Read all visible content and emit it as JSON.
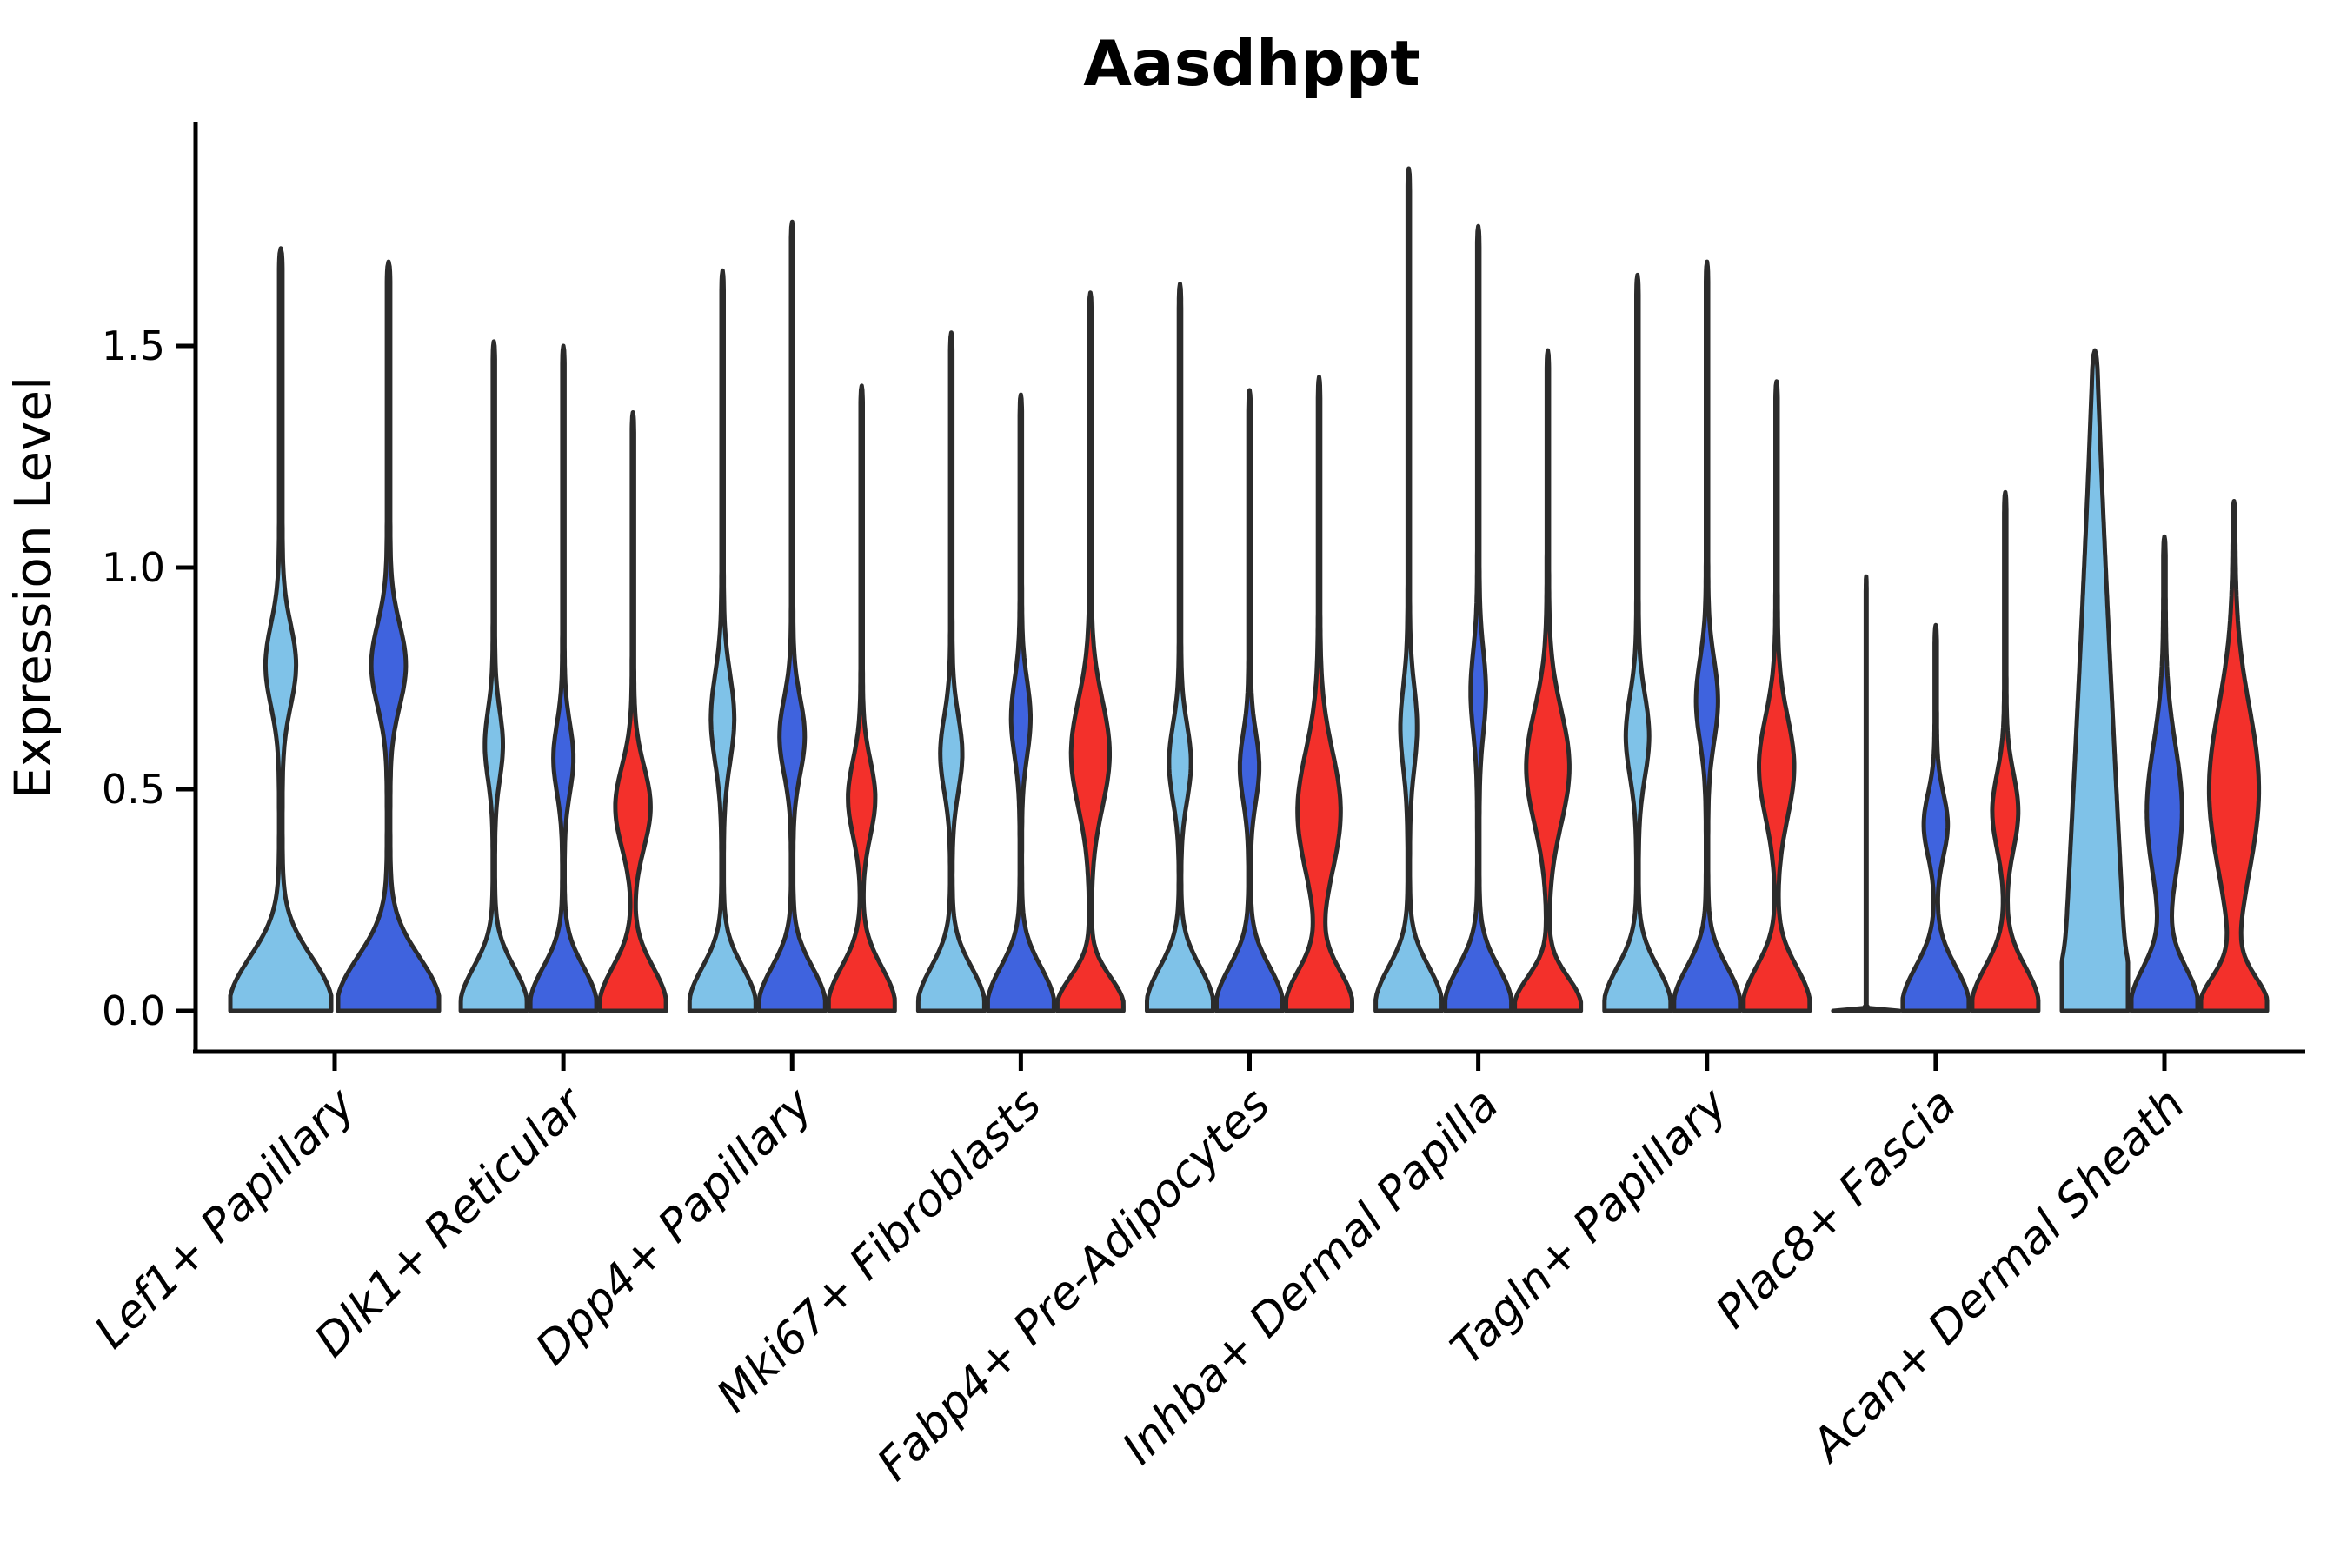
{
  "figure": {
    "title": "Aasdhppt",
    "ylabel": "Expression Level",
    "xlabel": ""
  },
  "colors": {
    "light_blue": "#7FC2E8",
    "blue": "#3F63DE",
    "red": "#F3302B",
    "violin_outline": "#2B2B2B",
    "axis": "#000000",
    "text": "#000000",
    "background": "#FFFFFF"
  },
  "chart_data": {
    "type": "violin",
    "title": "Aasdhppt",
    "xlabel": "",
    "ylabel": "Expression Level",
    "ylim": [
      0,
      1.95
    ],
    "yticks": [
      0.0,
      0.5,
      1.0,
      1.5
    ],
    "ytick_labels": [
      "0.0",
      "0.5",
      "1.0",
      "1.5"
    ],
    "grid": false,
    "legend": "none",
    "x_tick_rotation_deg": 45,
    "series_colors": [
      "light_blue",
      "blue",
      "red"
    ],
    "groups": [
      {
        "label": "Lef1+ Papillary",
        "violins": [
          {
            "color": "light_blue",
            "peak": 1.72,
            "bulge_center": 0.78,
            "bulge_width": 0.27,
            "bulge_spread": 0.13,
            "base_spread": 0.16
          },
          {
            "color": "blue",
            "peak": 1.69,
            "bulge_center": 0.78,
            "bulge_width": 0.31,
            "bulge_spread": 0.13,
            "base_spread": 0.16
          }
        ]
      },
      {
        "label": "Dlk1+ Reticular",
        "violins": [
          {
            "color": "light_blue",
            "peak": 1.51,
            "bulge_center": 0.6,
            "bulge_width": 0.24,
            "bulge_spread": 0.11
          },
          {
            "color": "blue",
            "peak": 1.5,
            "bulge_center": 0.57,
            "bulge_width": 0.27,
            "bulge_spread": 0.11
          },
          {
            "color": "red",
            "peak": 1.35,
            "bulge_center": 0.46,
            "bulge_width": 0.5,
            "bulge_spread": 0.13
          }
        ]
      },
      {
        "label": "Dpp4+ Papillary",
        "violins": [
          {
            "color": "light_blue",
            "peak": 1.67,
            "bulge_center": 0.66,
            "bulge_width": 0.32,
            "bulge_spread": 0.14
          },
          {
            "color": "blue",
            "peak": 1.78,
            "bulge_center": 0.62,
            "bulge_width": 0.35,
            "bulge_spread": 0.12
          },
          {
            "color": "red",
            "peak": 1.41,
            "bulge_center": 0.48,
            "bulge_width": 0.38,
            "bulge_spread": 0.12
          }
        ]
      },
      {
        "label": "Mki67+ Fibroblasts",
        "violins": [
          {
            "color": "light_blue",
            "peak": 1.53,
            "bulge_center": 0.58,
            "bulge_width": 0.3,
            "bulge_spread": 0.12
          },
          {
            "color": "blue",
            "peak": 1.39,
            "bulge_center": 0.66,
            "bulge_width": 0.26,
            "bulge_spread": 0.12
          },
          {
            "color": "red",
            "peak": 1.62,
            "bulge_center": 0.58,
            "bulge_width": 0.55,
            "bulge_spread": 0.17,
            "base_spread": 0.1
          }
        ]
      },
      {
        "label": "Fabp4+ Pre-Adipocytes",
        "violins": [
          {
            "color": "light_blue",
            "peak": 1.64,
            "bulge_center": 0.56,
            "bulge_width": 0.3,
            "bulge_spread": 0.12
          },
          {
            "color": "blue",
            "peak": 1.4,
            "bulge_center": 0.55,
            "bulge_width": 0.26,
            "bulge_spread": 0.11
          },
          {
            "color": "red",
            "peak": 1.43,
            "bulge_center": 0.45,
            "bulge_width": 0.62,
            "bulge_spread": 0.19,
            "base_spread": 0.12
          }
        ]
      },
      {
        "label": "Inhba+ Dermal Papilla",
        "violins": [
          {
            "color": "light_blue",
            "peak": 1.9,
            "bulge_center": 0.64,
            "bulge_width": 0.22,
            "bulge_spread": 0.13
          },
          {
            "color": "blue",
            "peak": 1.77,
            "bulge_center": 0.72,
            "bulge_width": 0.2,
            "bulge_spread": 0.13
          },
          {
            "color": "red",
            "peak": 1.49,
            "bulge_center": 0.55,
            "bulge_width": 0.62,
            "bulge_spread": 0.18,
            "base_spread": 0.1
          }
        ]
      },
      {
        "label": "Tagln+ Papillary",
        "violins": [
          {
            "color": "light_blue",
            "peak": 1.66,
            "bulge_center": 0.62,
            "bulge_width": 0.32,
            "bulge_spread": 0.13
          },
          {
            "color": "blue",
            "peak": 1.69,
            "bulge_center": 0.7,
            "bulge_width": 0.3,
            "bulge_spread": 0.13
          },
          {
            "color": "red",
            "peak": 1.42,
            "bulge_center": 0.55,
            "bulge_width": 0.5,
            "bulge_spread": 0.16
          }
        ]
      },
      {
        "label": "Plac8+ Fascia",
        "violins": [
          {
            "color": "light_blue",
            "peak": 0.98,
            "flat": true
          },
          {
            "color": "blue",
            "peak": 0.87,
            "bulge_center": 0.42,
            "bulge_width": 0.33,
            "bulge_spread": 0.1
          },
          {
            "color": "red",
            "peak": 1.17,
            "bulge_center": 0.45,
            "bulge_width": 0.36,
            "bulge_spread": 0.12
          }
        ]
      },
      {
        "label": "Acan+ Dermal Sheath",
        "violins": [
          {
            "color": "light_blue",
            "peak": 1.49,
            "wedge_width": 0.95,
            "base_width": 0.3,
            "base_spread": 0.1,
            "spike": 0.05
          },
          {
            "color": "blue",
            "peak": 1.07,
            "bulge_center": 0.45,
            "bulge_width": 0.5,
            "bulge_spread": 0.21,
            "base_spread": 0.13
          },
          {
            "color": "red",
            "peak": 1.15,
            "bulge_center": 0.5,
            "bulge_width": 0.72,
            "bulge_spread": 0.26,
            "base_spread": 0.1
          }
        ]
      }
    ]
  }
}
